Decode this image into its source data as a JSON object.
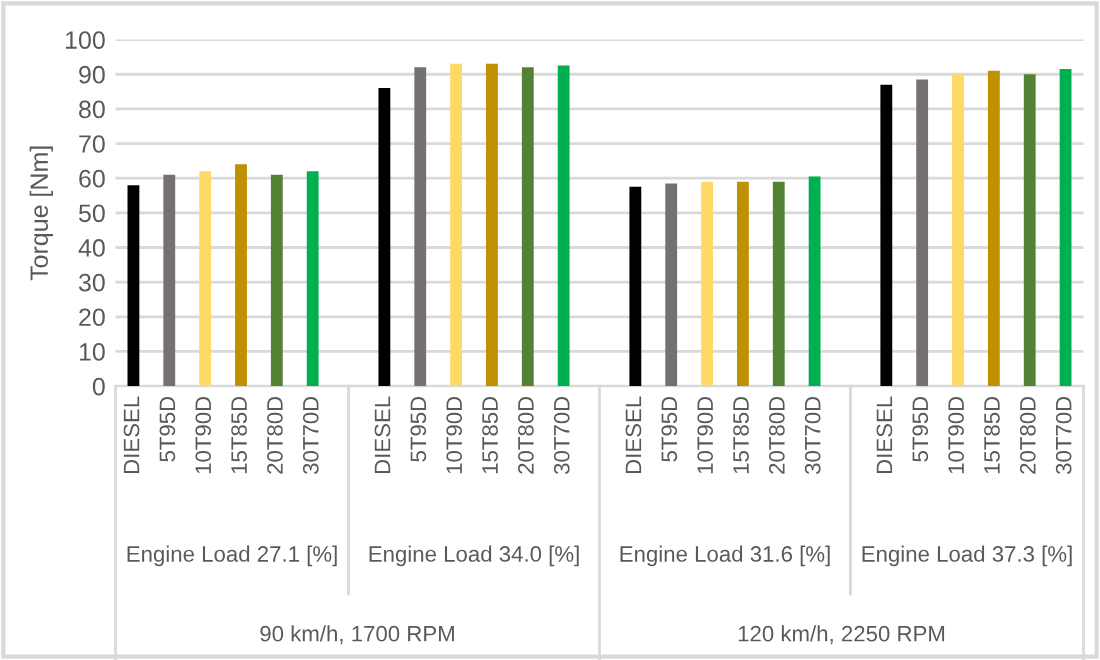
{
  "chart_data": {
    "type": "bar",
    "ylabel": "Torque [Nm]",
    "categories": [
      "DIESEL",
      "5T95D",
      "10T90D",
      "15T85D",
      "20T80D",
      "30T70D",
      null,
      "DIESEL",
      "5T95D",
      "10T90D",
      "15T85D",
      "20T80D",
      "30T70D",
      null,
      "DIESEL",
      "5T95D",
      "10T90D",
      "15T85D",
      "20T80D",
      "30T70D",
      null,
      "DIESEL",
      "5T95D",
      "10T90D",
      "15T85D",
      "20T80D",
      "30T70D"
    ],
    "values": [
      58,
      61,
      62,
      64,
      61,
      62,
      null,
      86,
      92,
      93,
      93,
      92,
      92.5,
      null,
      57.5,
      58.5,
      59,
      59,
      59,
      60.5,
      null,
      87,
      88.5,
      90,
      91,
      90,
      91.5
    ],
    "colors": [
      "#000000",
      "#767171",
      "#ffd966",
      "#bf9000",
      "#548235",
      "#00b050",
      null,
      "#000000",
      "#767171",
      "#ffd966",
      "#bf9000",
      "#548235",
      "#00b050",
      null,
      "#000000",
      "#767171",
      "#ffd966",
      "#bf9000",
      "#548235",
      "#00b050",
      null,
      "#000000",
      "#767171",
      "#ffd966",
      "#bf9000",
      "#548235",
      "#00b050"
    ],
    "annotations": [
      "Engine Load 27.1 [%]",
      "Engine Load 34.0 [%]",
      "Engine Load 31.6 [%]",
      "Engine Load 37.3 [%]",
      "90 km/h, 1700 RPM",
      "120 km/h, 2250 RPM"
    ],
    "ylim": [
      0,
      100
    ],
    "yticks": [
      0,
      10,
      20,
      30,
      40,
      50,
      60,
      70,
      80,
      90,
      100
    ],
    "grid": "y"
  }
}
